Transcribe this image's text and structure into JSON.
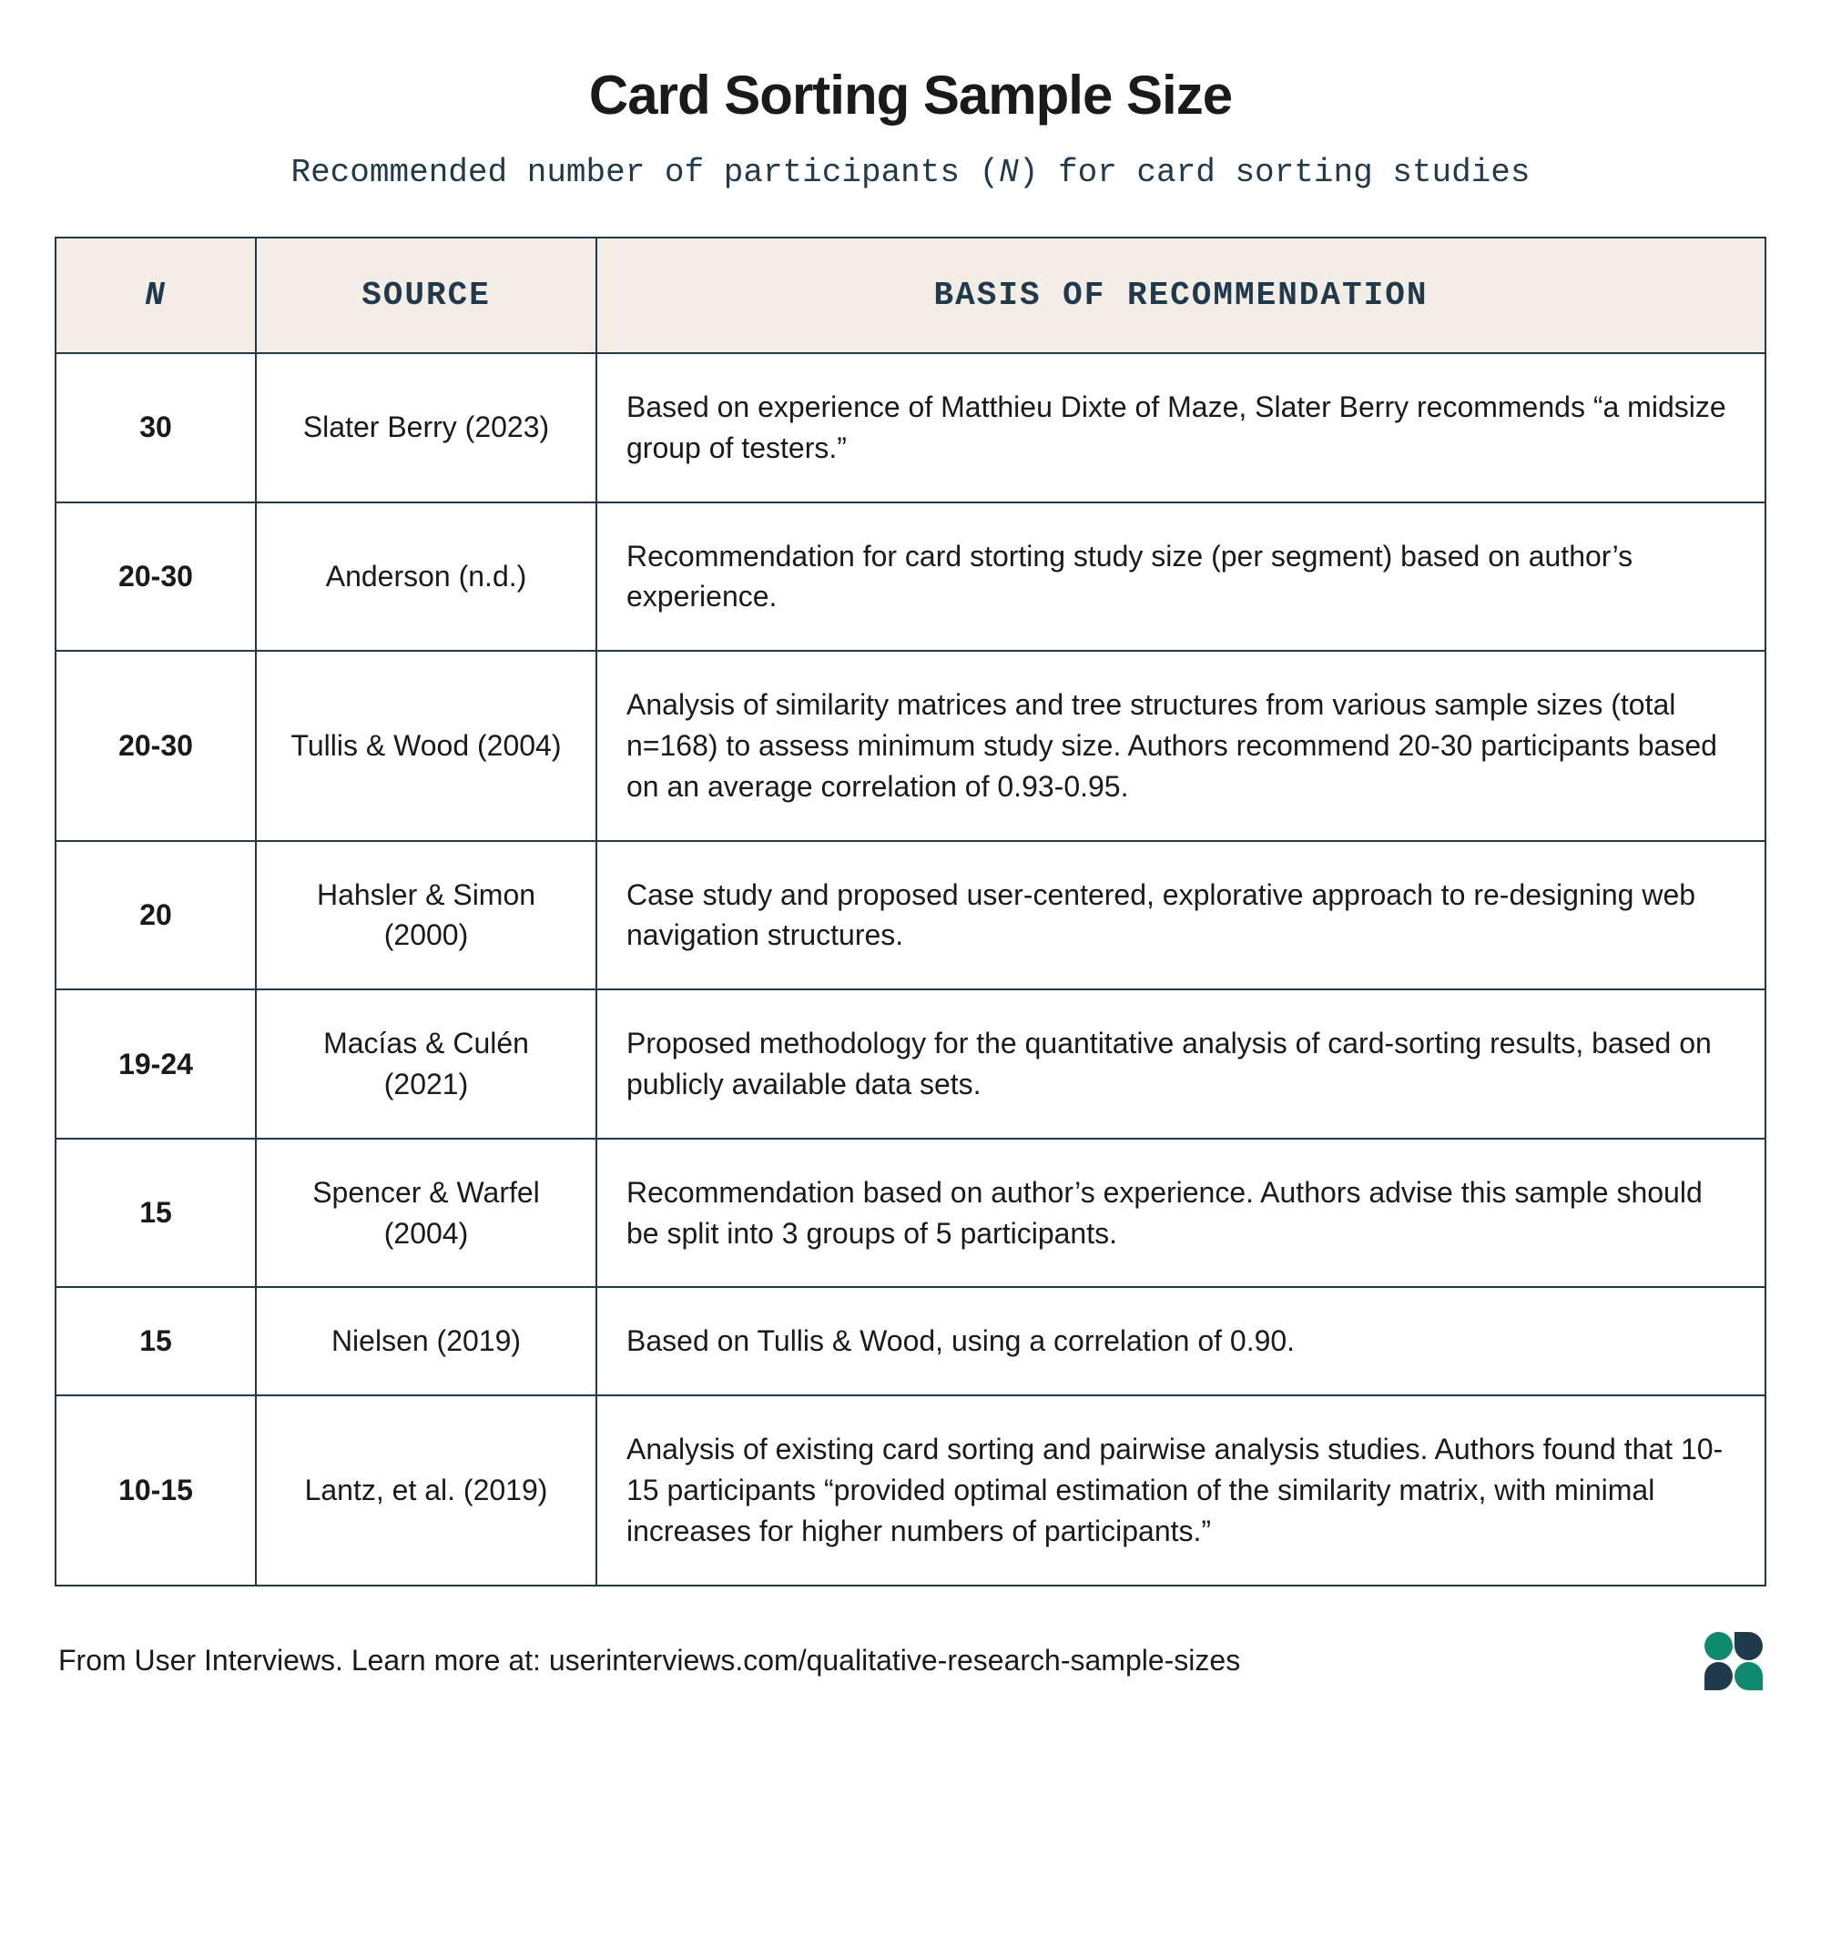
{
  "title": "Card Sorting Sample Size",
  "subtitle_pre": "Recommended number of participants (",
  "subtitle_n": "N",
  "subtitle_post": ") for card sorting studies",
  "table": {
    "columns": {
      "n": "N",
      "source": "SOURCE",
      "basis": "BASIS OF RECOMMENDATION"
    },
    "column_widths": {
      "n": 220,
      "source": 374
    },
    "header_bg": "#f4ede5",
    "border_color": "#1f3a4d",
    "header_font": "Courier New",
    "body_font": "sans-serif",
    "header_fontsize": 36,
    "body_fontsize": 32,
    "rows": [
      {
        "n": "30",
        "source": "Slater Berry (2023)",
        "basis": "Based on experience of Matthieu Dixte of Maze, Slater Berry recommends “a midsize group of testers.”"
      },
      {
        "n": "20-30",
        "source": "Anderson (n.d.)",
        "basis": "Recommendation for card storting study size (per segment) based on author’s experience."
      },
      {
        "n": "20-30",
        "source": "Tullis & Wood (2004)",
        "basis": "Analysis of similarity matrices and tree structures from various sample sizes (total n=168) to assess minimum study size. Authors recommend 20-30 participants based on an average correlation of 0.93-0.95."
      },
      {
        "n": "20",
        "source": "Hahsler & Simon (2000)",
        "basis": "Case study and proposed user-centered, explorative approach to re-designing web navigation structures."
      },
      {
        "n": "19-24",
        "source": "Macías & Culén (2021)",
        "basis": "Proposed methodology for the quantitative analysis of card-sorting results, based on publicly available data sets."
      },
      {
        "n": "15",
        "source": "Spencer & Warfel (2004)",
        "basis": "Recommendation based on author’s experience. Authors advise this sample should be split into 3 groups of 5 participants."
      },
      {
        "n": "15",
        "source": "Nielsen (2019)",
        "basis": "Based on Tullis & Wood, using a correlation of 0.90."
      },
      {
        "n": "10-15",
        "source": "Lantz, et al. (2019)",
        "basis": "Analysis of existing card sorting and pairwise analysis studies. Authors found that 10-15 participants “provided optimal estimation of the similarity matrix, with minimal increases for higher numbers of participants.”"
      }
    ]
  },
  "footer_text": "From User Interviews. Learn more at: userinterviews.com/qualitative-research-sample-sizes",
  "logo_colors": {
    "green": "#0e8a6f",
    "navy": "#1f3a4d"
  },
  "background_color": "#ffffff"
}
